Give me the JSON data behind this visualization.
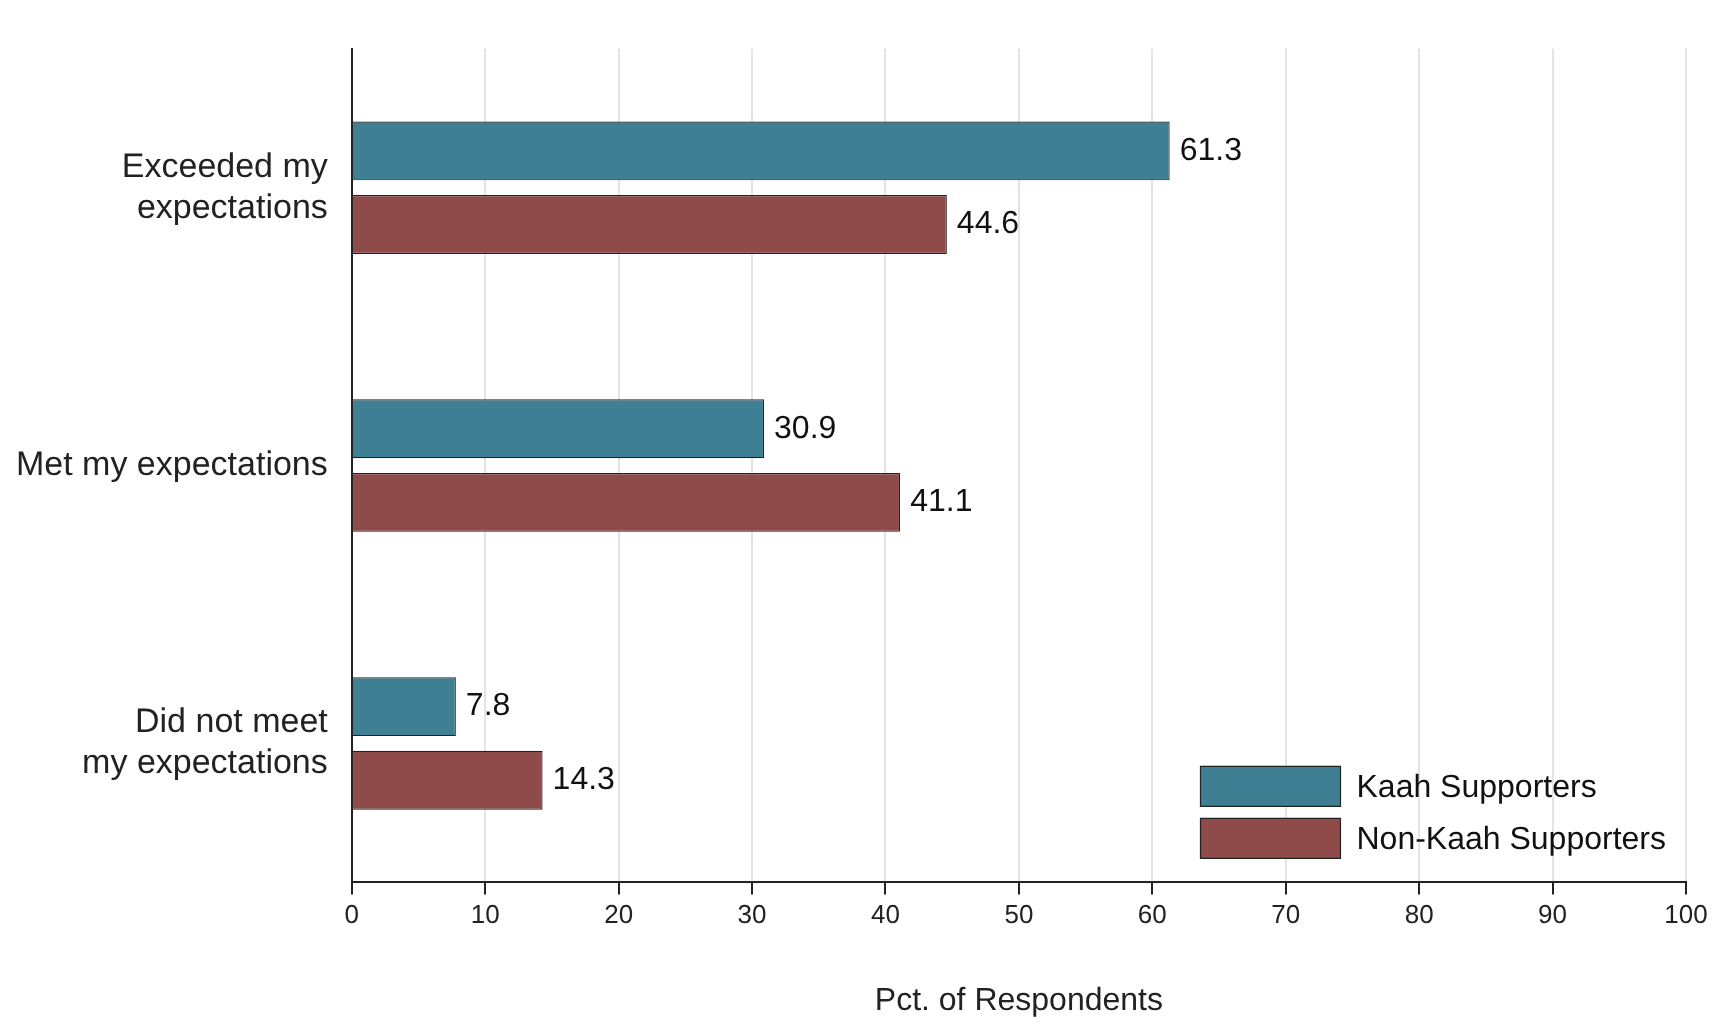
{
  "chart_data": {
    "type": "bar",
    "orientation": "horizontal",
    "categories": [
      "Exceeded my\nexpectations",
      "Met my expectations",
      "Did not meet\nmy expectations"
    ],
    "series": [
      {
        "name": "Kaah Supporters",
        "color": "#3e7f93",
        "values": [
          61.3,
          30.9,
          7.8
        ]
      },
      {
        "name": "Non-Kaah Supporters",
        "color": "#8f4a4a",
        "values": [
          44.6,
          41.1,
          14.3
        ]
      }
    ],
    "xlabel": "Pct. of Respondents",
    "xlim": [
      0,
      100
    ],
    "xticks": [
      0,
      10,
      20,
      30,
      40,
      50,
      60,
      70,
      80,
      90,
      100
    ],
    "grid": "x",
    "legend": "bottom right",
    "data_labels": true
  }
}
